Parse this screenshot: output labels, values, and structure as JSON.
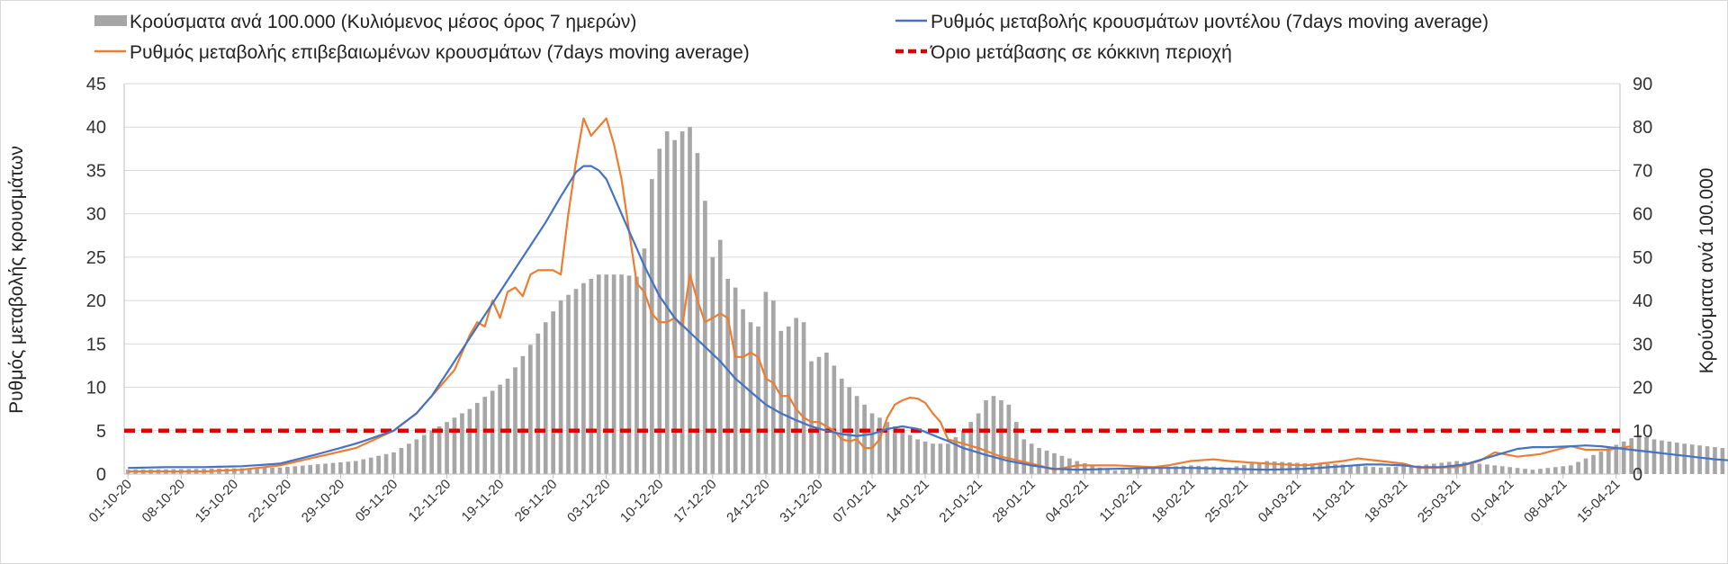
{
  "chart_data": {
    "type": "bar",
    "title": "",
    "ylabel_left": "Ρυθμός μεταβολής κρουσμάτων",
    "ylabel_right": "Κρούσματα ανά 100.000",
    "ylim_left": [
      0,
      45
    ],
    "ylim_right": [
      0,
      90
    ],
    "yticks_left": [
      "0",
      "5",
      "10",
      "15",
      "20",
      "25",
      "30",
      "35",
      "40",
      "45"
    ],
    "yticks_right": [
      "0",
      "10",
      "20",
      "30",
      "40",
      "50",
      "60",
      "70",
      "80",
      "90"
    ],
    "x_start": "01-10-20",
    "x_end": "15-04-21",
    "xtick_labels": [
      "01-10-20",
      "08-10-20",
      "15-10-20",
      "22-10-20",
      "29-10-20",
      "05-11-20",
      "12-11-20",
      "19-11-20",
      "26-11-20",
      "03-12-20",
      "10-12-20",
      "17-12-20",
      "24-12-20",
      "31-12-20",
      "07-01-21",
      "14-01-21",
      "21-01-21",
      "28-01-21",
      "04-02-21",
      "11-02-21",
      "18-02-21",
      "25-02-21",
      "04-03-21",
      "11-03-21",
      "18-03-21",
      "25-03-21",
      "01-04-21",
      "08-04-21",
      "15-04-21"
    ],
    "legend": {
      "bars": "Κρούσματα ανά 100.000 (Κυλιόμενος μέσος όρος 7 ημερών)",
      "model": "Ρυθμός μεταβολής κρουσμάτων μοντέλου (7days moving average)",
      "confirmed": "Ρυθμός μεταβολής επιβεβαιωμένων κρουσμάτων (7days moving average)",
      "threshold": "Όριο μετάβασης σε κόκκινη περιοχή"
    },
    "colors": {
      "bars": "#a6a6a6",
      "model": "#4472c4",
      "confirmed": "#ed7d31",
      "threshold": "#e00000",
      "grid": "#d9d9d9",
      "axis": "#bfbfbf"
    },
    "threshold_value": 5,
    "bars_axis": "right",
    "bar_keypoints": [
      [
        0,
        1
      ],
      [
        10,
        1.2
      ],
      [
        20,
        1.5
      ],
      [
        30,
        3
      ],
      [
        35,
        5
      ],
      [
        40,
        10
      ],
      [
        45,
        15
      ],
      [
        50,
        22
      ],
      [
        55,
        35
      ],
      [
        57,
        40
      ],
      [
        60,
        44
      ],
      [
        62,
        46
      ],
      [
        65,
        46
      ],
      [
        67,
        45.5
      ],
      [
        68,
        52
      ],
      [
        69,
        68
      ],
      [
        70,
        75
      ],
      [
        71,
        79
      ],
      [
        72,
        77
      ],
      [
        73,
        79
      ],
      [
        74,
        80
      ],
      [
        75,
        74
      ],
      [
        76,
        63
      ],
      [
        77,
        50
      ],
      [
        78,
        54
      ],
      [
        79,
        45
      ],
      [
        80,
        43
      ],
      [
        81,
        38
      ],
      [
        82,
        35
      ],
      [
        83,
        34
      ],
      [
        84,
        42
      ],
      [
        85,
        40
      ],
      [
        86,
        33
      ],
      [
        87,
        34
      ],
      [
        88,
        36
      ],
      [
        89,
        35
      ],
      [
        90,
        26
      ],
      [
        91,
        27
      ],
      [
        92,
        28
      ],
      [
        94,
        22
      ],
      [
        96,
        18
      ],
      [
        98,
        14
      ],
      [
        100,
        12
      ],
      [
        102,
        10
      ],
      [
        104,
        8
      ],
      [
        106,
        7
      ],
      [
        108,
        7
      ],
      [
        110,
        10
      ],
      [
        112,
        14
      ],
      [
        113,
        17
      ],
      [
        114,
        18
      ],
      [
        115,
        17
      ],
      [
        116,
        16
      ],
      [
        117,
        12
      ],
      [
        118,
        8
      ],
      [
        120,
        6
      ],
      [
        125,
        3
      ],
      [
        128,
        1.5
      ],
      [
        130,
        0.8
      ],
      [
        135,
        1.5
      ],
      [
        140,
        2
      ],
      [
        145,
        1.5
      ],
      [
        150,
        3
      ],
      [
        155,
        2.5
      ],
      [
        160,
        2.2
      ],
      [
        165,
        1.5
      ],
      [
        170,
        2
      ],
      [
        175,
        3
      ],
      [
        180,
        2
      ],
      [
        185,
        1
      ],
      [
        190,
        2
      ],
      [
        195,
        6
      ],
      [
        199,
        9
      ],
      [
        201,
        8
      ],
      [
        205,
        7
      ],
      [
        210,
        6
      ],
      [
        213,
        7
      ]
    ],
    "confirmed_keypoints": [
      [
        0,
        0.3
      ],
      [
        10,
        0.3
      ],
      [
        15,
        0.5
      ],
      [
        20,
        1
      ],
      [
        25,
        2
      ],
      [
        30,
        3
      ],
      [
        35,
        5
      ],
      [
        38,
        7
      ],
      [
        40,
        9
      ],
      [
        43,
        12
      ],
      [
        45,
        16
      ],
      [
        46,
        17.5
      ],
      [
        47,
        17
      ],
      [
        48,
        20
      ],
      [
        49,
        18
      ],
      [
        50,
        21
      ],
      [
        51,
        21.5
      ],
      [
        52,
        20.5
      ],
      [
        53,
        23
      ],
      [
        54,
        23.5
      ],
      [
        55,
        23.5
      ],
      [
        56,
        23.5
      ],
      [
        57,
        23
      ],
      [
        58,
        30
      ],
      [
        59,
        36
      ],
      [
        60,
        41
      ],
      [
        61,
        39
      ],
      [
        62,
        40
      ],
      [
        63,
        41
      ],
      [
        64,
        38
      ],
      [
        65,
        34
      ],
      [
        66,
        28
      ],
      [
        67,
        22
      ],
      [
        68,
        21
      ],
      [
        69,
        18.5
      ],
      [
        70,
        17.5
      ],
      [
        71,
        17.5
      ],
      [
        72,
        18
      ],
      [
        73,
        17
      ],
      [
        74,
        23
      ],
      [
        75,
        20
      ],
      [
        76,
        17.5
      ],
      [
        77,
        18
      ],
      [
        78,
        18.5
      ],
      [
        79,
        18
      ],
      [
        80,
        13.5
      ],
      [
        81,
        13.5
      ],
      [
        82,
        14
      ],
      [
        83,
        13.5
      ],
      [
        84,
        11
      ],
      [
        85,
        10.5
      ],
      [
        86,
        9
      ],
      [
        87,
        9
      ],
      [
        88,
        7.5
      ],
      [
        89,
        6.5
      ],
      [
        90,
        6
      ],
      [
        91,
        6
      ],
      [
        92,
        5.5
      ],
      [
        93,
        5
      ],
      [
        94,
        4
      ],
      [
        95,
        3.8
      ],
      [
        96,
        4
      ],
      [
        97,
        3
      ],
      [
        98,
        3
      ],
      [
        99,
        4
      ],
      [
        100,
        6.5
      ],
      [
        101,
        8
      ],
      [
        102,
        8.5
      ],
      [
        103,
        8.8
      ],
      [
        104,
        8.7
      ],
      [
        105,
        8.2
      ],
      [
        106,
        7
      ],
      [
        107,
        6
      ],
      [
        108,
        4
      ],
      [
        110,
        3.5
      ],
      [
        112,
        3
      ],
      [
        115,
        2
      ],
      [
        120,
        1
      ],
      [
        122,
        0.5
      ],
      [
        125,
        1
      ],
      [
        130,
        1
      ],
      [
        135,
        0.8
      ],
      [
        137,
        1
      ],
      [
        140,
        1.5
      ],
      [
        143,
        1.7
      ],
      [
        145,
        1.5
      ],
      [
        150,
        1.2
      ],
      [
        155,
        1
      ],
      [
        160,
        1.5
      ],
      [
        162,
        1.8
      ],
      [
        165,
        1.5
      ],
      [
        168,
        1.2
      ],
      [
        170,
        0.7
      ],
      [
        175,
        0.8
      ],
      [
        178,
        1.5
      ],
      [
        180,
        2.5
      ],
      [
        183,
        2
      ],
      [
        186,
        2.3
      ],
      [
        189,
        3
      ],
      [
        190,
        3.2
      ],
      [
        192,
        2.8
      ],
      [
        195,
        2.8
      ],
      [
        198,
        3.2
      ]
    ],
    "model_keypoints": [
      [
        0,
        0.7
      ],
      [
        5,
        0.8
      ],
      [
        10,
        0.8
      ],
      [
        15,
        0.9
      ],
      [
        20,
        1.2
      ],
      [
        25,
        2.3
      ],
      [
        30,
        3.5
      ],
      [
        35,
        5
      ],
      [
        38,
        7
      ],
      [
        40,
        9
      ],
      [
        43,
        13
      ],
      [
        46,
        17
      ],
      [
        49,
        21
      ],
      [
        52,
        25
      ],
      [
        55,
        29
      ],
      [
        57,
        32
      ],
      [
        59,
        34.8
      ],
      [
        60,
        35.5
      ],
      [
        61,
        35.5
      ],
      [
        62,
        35
      ],
      [
        63,
        34
      ],
      [
        64,
        32
      ],
      [
        66,
        28
      ],
      [
        68,
        24
      ],
      [
        70,
        20.5
      ],
      [
        72,
        18
      ],
      [
        75,
        15.5
      ],
      [
        78,
        13
      ],
      [
        80,
        11
      ],
      [
        82,
        9.5
      ],
      [
        84,
        8
      ],
      [
        86,
        7
      ],
      [
        88,
        6.2
      ],
      [
        90,
        5.5
      ],
      [
        92,
        5
      ],
      [
        94,
        4.6
      ],
      [
        96,
        4.4
      ],
      [
        98,
        4.6
      ],
      [
        100,
        5.2
      ],
      [
        102,
        5.5
      ],
      [
        104,
        5.2
      ],
      [
        106,
        4.5
      ],
      [
        108,
        3.8
      ],
      [
        110,
        3
      ],
      [
        113,
        2.2
      ],
      [
        116,
        1.5
      ],
      [
        119,
        1
      ],
      [
        122,
        0.6
      ],
      [
        125,
        0.5
      ],
      [
        130,
        0.6
      ],
      [
        135,
        0.7
      ],
      [
        140,
        0.7
      ],
      [
        145,
        0.6
      ],
      [
        150,
        0.5
      ],
      [
        155,
        0.6
      ],
      [
        160,
        0.9
      ],
      [
        163,
        1.1
      ],
      [
        165,
        1.1
      ],
      [
        168,
        1
      ],
      [
        170,
        0.8
      ],
      [
        173,
        0.8
      ],
      [
        176,
        1.1
      ],
      [
        178,
        1.6
      ],
      [
        181,
        2.4
      ],
      [
        183,
        2.9
      ],
      [
        185,
        3.1
      ],
      [
        187,
        3.1
      ],
      [
        190,
        3.2
      ],
      [
        192,
        3.3
      ],
      [
        194,
        3.2
      ],
      [
        196,
        3
      ],
      [
        200,
        2.6
      ],
      [
        203,
        2.3
      ],
      [
        206,
        2
      ],
      [
        209,
        1.7
      ],
      [
        212,
        1.5
      ],
      [
        214,
        1.3
      ],
      [
        216,
        1.2
      ],
      [
        218,
        1.1
      ],
      [
        220,
        1
      ]
    ]
  }
}
